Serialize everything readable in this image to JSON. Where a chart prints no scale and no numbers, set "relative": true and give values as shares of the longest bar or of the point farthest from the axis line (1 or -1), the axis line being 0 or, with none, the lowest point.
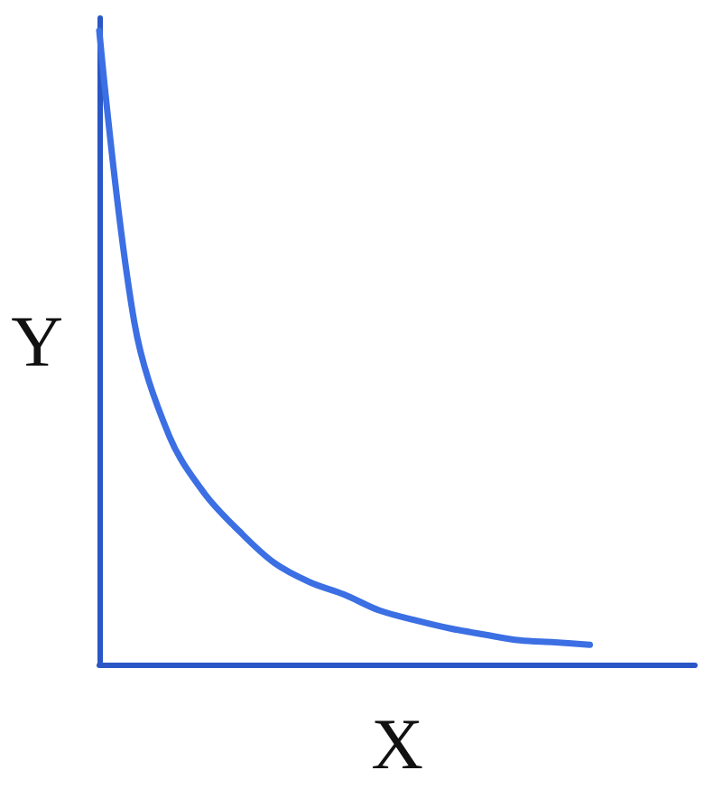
{
  "chart_data": {
    "type": "line",
    "relative": true,
    "xlabel": "X",
    "ylabel": "Y",
    "categories": [
      null,
      null,
      null,
      null,
      null,
      null,
      null,
      null,
      null,
      null,
      null,
      null,
      null,
      null,
      null,
      null,
      null,
      null
    ],
    "series": [
      {
        "color": "#3b6fe3",
        "values": [
          1,
          0.54,
          0.36,
          0.27,
          0.21,
          0.16,
          0.13,
          0.11,
          0.085,
          0.07,
          0.057,
          0.047,
          0.038,
          0.035,
          0.031,
          null,
          null,
          null
        ]
      }
    ],
    "grid": false,
    "marker": "none",
    "line_style": "solid"
  }
}
